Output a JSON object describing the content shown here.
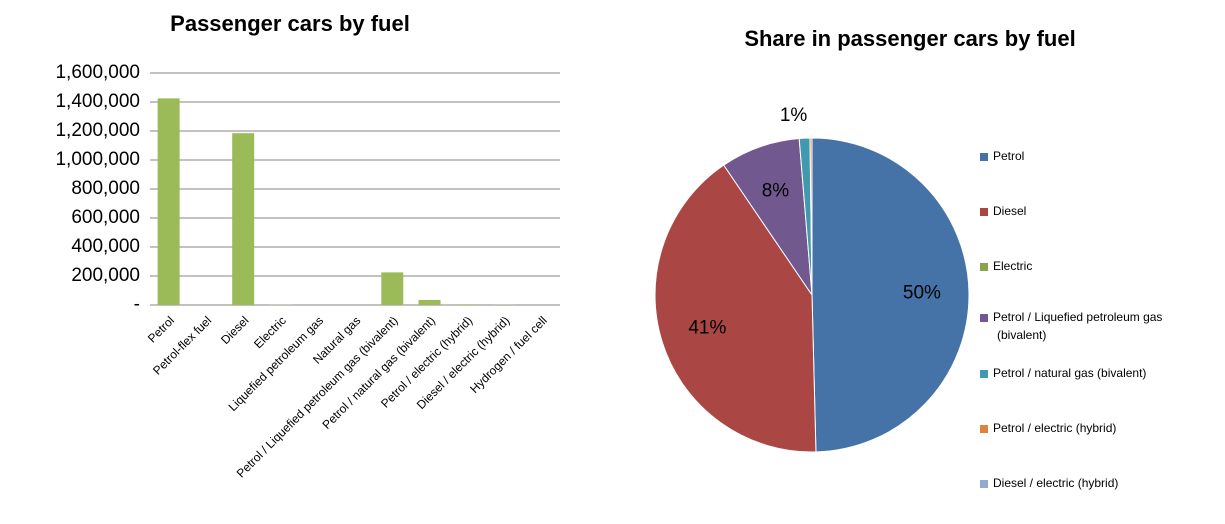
{
  "chart_data": [
    {
      "type": "bar",
      "title": "Passenger cars by fuel",
      "categories": [
        "Petrol",
        "Petrol-flex fuel",
        "Diesel",
        "Electric",
        "Liquefied petroleum gas",
        "Natural gas",
        "Petrol / Liquefied petroleum gas (bivalent)",
        "Petrol / natural gas (bivalent)",
        "Petrol / electric (hybrid)",
        "Diesel / electric (hybrid)",
        "Hydrogen / fuel cell"
      ],
      "values": [
        1425000,
        0,
        1185000,
        2000,
        0,
        0,
        225000,
        35000,
        5000,
        1000,
        0
      ],
      "color": "#9bbb59",
      "ylim": [
        0,
        1600000
      ],
      "yticks": [
        {
          "value": 0,
          "label": "-"
        },
        {
          "value": 200000,
          "label": "200,000"
        },
        {
          "value": 400000,
          "label": "400,000"
        },
        {
          "value": 600000,
          "label": "600,000"
        },
        {
          "value": 800000,
          "label": "800,000"
        },
        {
          "value": 1000000,
          "label": "1,000,000"
        },
        {
          "value": 1200000,
          "label": "1,200,000"
        },
        {
          "value": 1400000,
          "label": "1,400,000"
        },
        {
          "value": 1600000,
          "label": "1,600,000"
        }
      ],
      "grid": true
    },
    {
      "type": "pie",
      "title": "Share in passenger cars by fuel",
      "categories": [
        "Petrol",
        "Diesel",
        "Electric",
        "Petrol / Liquefied petroleum gas (bivalent)",
        "Petrol / natural gas (bivalent)",
        "Petrol / electric (hybrid)",
        "Diesel / electric (hybrid)"
      ],
      "values": [
        49.6,
        40.9,
        0,
        8.2,
        1.1,
        0.2,
        0
      ],
      "value_labels": [
        "50%",
        "41%",
        null,
        "8%",
        "1%",
        null,
        null
      ],
      "colors": [
        "#4572a7",
        "#aa4643",
        "#89a54e",
        "#71588f",
        "#4198af",
        "#db843d",
        "#93a9cf"
      ],
      "legend": "right"
    }
  ]
}
